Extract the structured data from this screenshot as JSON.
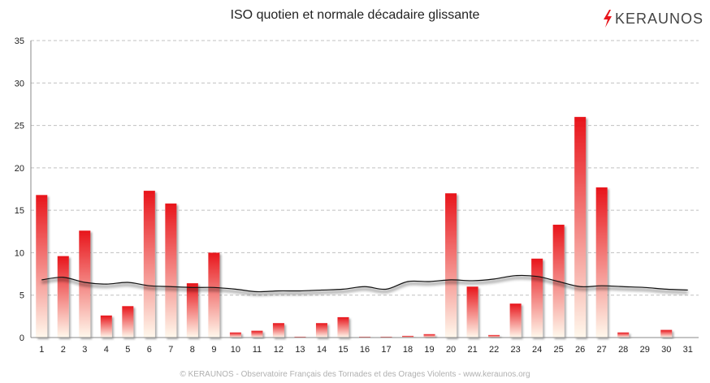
{
  "chart_title": "ISO quotien et normale décadaire glissante",
  "logo_text": "KERAUNOS",
  "footer": "© KERAUNOS - Observatoire Français des Tornades et des Orages Violents - www.keraunos.org",
  "chart_data": {
    "type": "bar",
    "title": "ISO quotien et normale décadaire glissante",
    "xlabel": "",
    "ylabel": "",
    "categories": [
      "1",
      "2",
      "3",
      "4",
      "5",
      "6",
      "7",
      "8",
      "9",
      "10",
      "11",
      "12",
      "13",
      "14",
      "15",
      "16",
      "17",
      "18",
      "19",
      "20",
      "21",
      "22",
      "23",
      "24",
      "25",
      "26",
      "27",
      "28",
      "29",
      "30",
      "31"
    ],
    "ylim": [
      0,
      35
    ],
    "yticks": [
      0,
      5,
      10,
      15,
      20,
      25,
      30,
      35
    ],
    "grid": true,
    "series": [
      {
        "type": "bar",
        "values": [
          16.8,
          9.6,
          12.6,
          2.6,
          3.7,
          17.3,
          15.8,
          6.4,
          10.0,
          0.6,
          0.8,
          1.7,
          0.1,
          1.7,
          2.4,
          0.1,
          0.1,
          0.2,
          0.4,
          17.0,
          6.0,
          0.3,
          4.0,
          9.3,
          13.3,
          26.0,
          17.7,
          0.6,
          0.0,
          0.9,
          0.0
        ]
      },
      {
        "type": "line",
        "values": [
          6.8,
          7.1,
          6.5,
          6.3,
          6.5,
          6.1,
          6.0,
          5.9,
          5.9,
          5.7,
          5.4,
          5.5,
          5.5,
          5.6,
          5.7,
          6.0,
          5.7,
          6.6,
          6.6,
          6.8,
          6.7,
          6.9,
          7.3,
          7.2,
          6.6,
          6.0,
          6.1,
          6.0,
          5.9,
          5.7,
          5.6
        ]
      }
    ],
    "colors": {
      "bar_top": "#e8151b",
      "bar_bottom": "#fff8ec",
      "line": "#111111",
      "grid": "#c0c0c0",
      "axis": "#888888"
    }
  }
}
